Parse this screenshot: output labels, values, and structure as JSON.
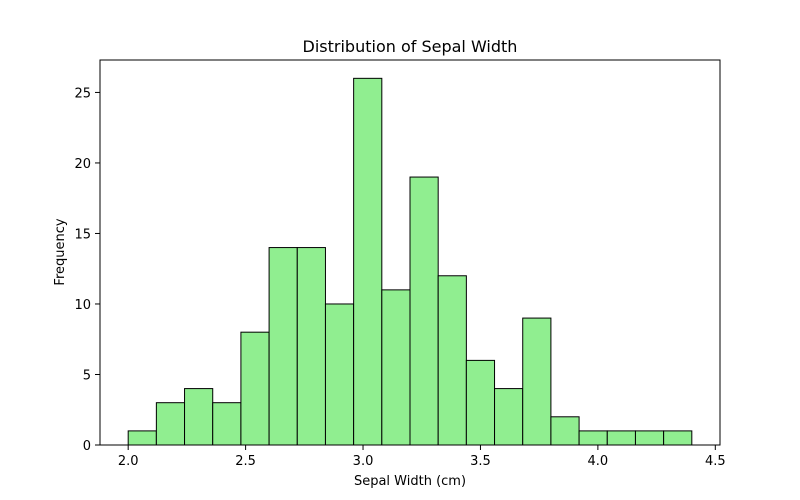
{
  "chart_data": {
    "type": "bar",
    "title": "Distribution of Sepal Width",
    "xlabel": "Sepal Width (cm)",
    "ylabel": "Frequency",
    "bin_edges": [
      2.0,
      2.12,
      2.24,
      2.36,
      2.48,
      2.6,
      2.72,
      2.84,
      2.96,
      3.08,
      3.2,
      3.32,
      3.44,
      3.56,
      3.68,
      3.8,
      3.92,
      4.04,
      4.16,
      4.28,
      4.4
    ],
    "values": [
      1,
      3,
      4,
      3,
      8,
      14,
      14,
      10,
      26,
      11,
      19,
      12,
      6,
      4,
      9,
      2,
      1,
      1,
      1,
      1
    ],
    "xlim": [
      1.88,
      4.52
    ],
    "ylim": [
      0,
      27.3
    ],
    "xticks": [
      "2.0",
      "2.5",
      "3.0",
      "3.5",
      "4.0",
      "4.5"
    ],
    "yticks": [
      "0",
      "5",
      "10",
      "15",
      "20",
      "25"
    ],
    "grid": false,
    "bar_color": "#90ee90",
    "edge_color": "#000000"
  }
}
